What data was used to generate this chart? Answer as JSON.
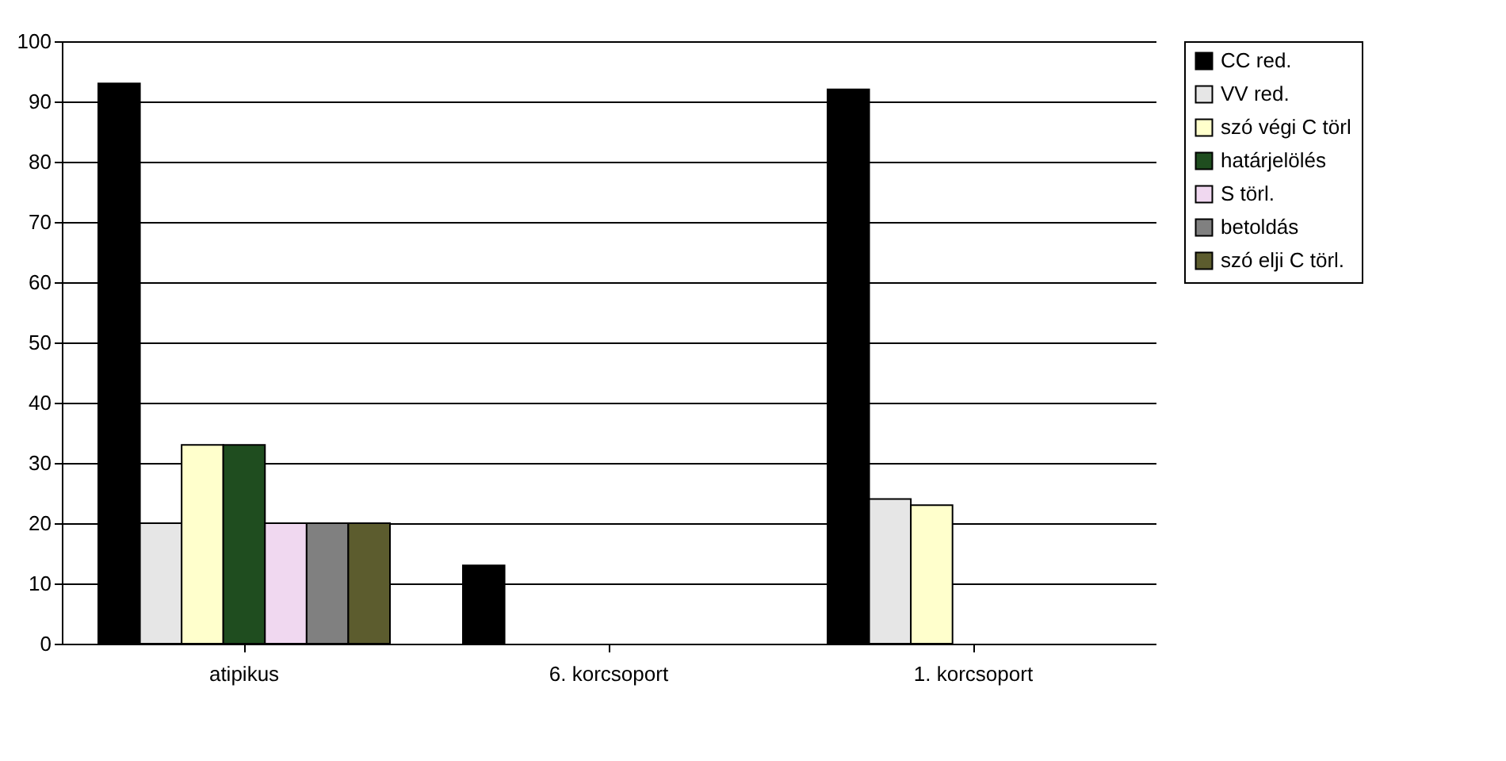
{
  "chart_data": {
    "type": "bar",
    "categories": [
      "atipikus",
      "6. korcsoport",
      "1. korcsoport"
    ],
    "series": [
      {
        "name": "CC red.",
        "color": "#000000",
        "values": [
          93,
          13,
          92
        ]
      },
      {
        "name": "VV red.",
        "color": "#e6e6e6",
        "values": [
          20,
          null,
          24
        ]
      },
      {
        "name": "szó végi C törl",
        "color": "#ffffcc",
        "values": [
          33,
          null,
          23
        ]
      },
      {
        "name": "határjelölés",
        "color": "#1f4d1f",
        "values": [
          33,
          null,
          null
        ]
      },
      {
        "name": "S törl.",
        "color": "#f0d8f0",
        "values": [
          20,
          null,
          null
        ]
      },
      {
        "name": "betoldás",
        "color": "#808080",
        "values": [
          20,
          null,
          null
        ]
      },
      {
        "name": "szó elji C törl.",
        "color": "#5c5c2e",
        "values": [
          20,
          null,
          null
        ]
      }
    ],
    "ylim": [
      0,
      100
    ],
    "yticks": [
      0,
      10,
      20,
      30,
      40,
      50,
      60,
      70,
      80,
      90,
      100
    ],
    "grid": "y",
    "legend": "right"
  }
}
